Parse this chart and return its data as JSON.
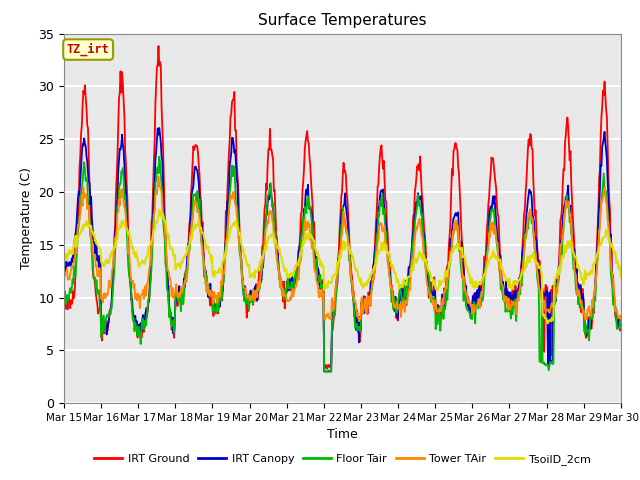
{
  "title": "Surface Temperatures",
  "xlabel": "Time",
  "ylabel": "Temperature (C)",
  "ylim": [
    0,
    35
  ],
  "x_tick_labels": [
    "Mar 15",
    "Mar 16",
    "Mar 17",
    "Mar 18",
    "Mar 19",
    "Mar 20",
    "Mar 21",
    "Mar 22",
    "Mar 23",
    "Mar 24",
    "Mar 25",
    "Mar 26",
    "Mar 27",
    "Mar 28",
    "Mar 29",
    "Mar 30"
  ],
  "annotation_text": "TZ_irt",
  "annotation_color": "#cc0000",
  "annotation_bg": "#ffffcc",
  "annotation_border": "#999900",
  "legend_entries": [
    "IRT Ground",
    "IRT Canopy",
    "Floor Tair",
    "Tower TAir",
    "TsoilD_2cm"
  ],
  "line_colors": [
    "#ff0000",
    "#0000cc",
    "#00bb00",
    "#ff8800",
    "#dddd00"
  ],
  "bg_color": "#e8e8e8",
  "grid_color": "#ffffff",
  "title_fontsize": 11,
  "axis_fontsize": 9
}
